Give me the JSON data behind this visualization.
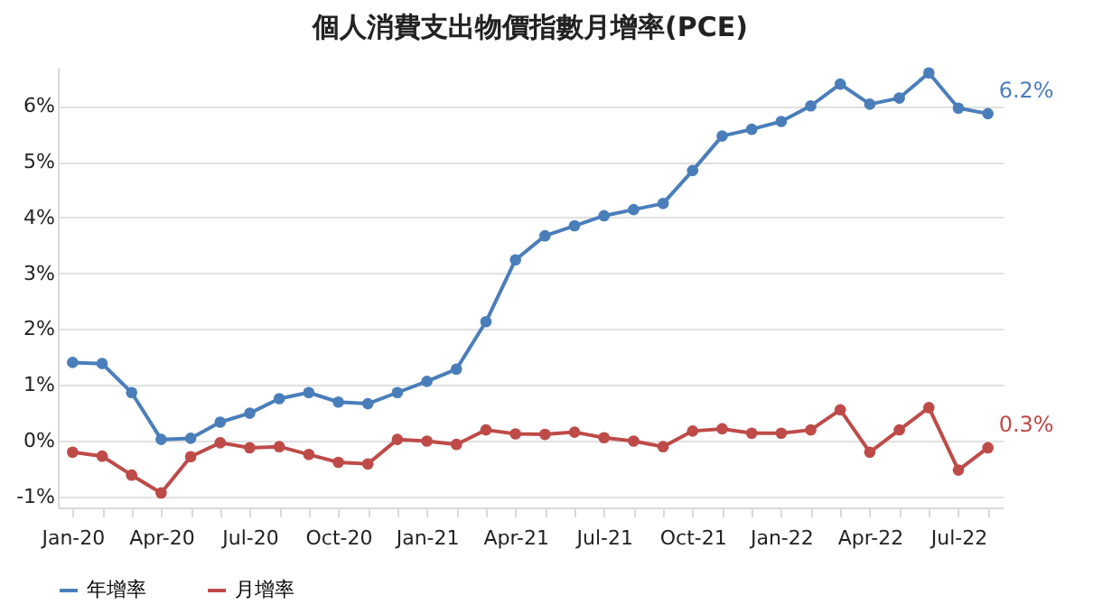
{
  "chart_data": {
    "type": "line",
    "title": "個人消費支出物價指數月增率(PCE)",
    "categories": [
      "Jan-20",
      null,
      null,
      "Apr-20",
      null,
      null,
      "Jul-20",
      null,
      null,
      "Oct-20",
      null,
      null,
      "Jan-21",
      null,
      null,
      "Apr-21",
      null,
      null,
      "Jul-21",
      null,
      null,
      "Oct-21",
      null,
      null,
      "Jan-22",
      null,
      null,
      "Apr-22",
      null,
      null,
      "Jul-22",
      null
    ],
    "series": [
      {
        "name": "年增率",
        "color": "#4a7ebb",
        "values": [
          1.4,
          1.38,
          0.86,
          0.02,
          0.04,
          0.33,
          0.49,
          0.75,
          0.86,
          0.69,
          0.66,
          0.86,
          1.06,
          1.28,
          2.13,
          3.24,
          3.67,
          3.85,
          4.03,
          4.14,
          4.25,
          4.84,
          5.46,
          5.58,
          5.72,
          6.0,
          6.39,
          6.03,
          6.14,
          6.59,
          5.96,
          5.86
        ]
      },
      {
        "name": "月增率",
        "color": "#be4b48",
        "values": [
          -0.21,
          -0.28,
          -0.62,
          -0.94,
          -0.29,
          -0.04,
          -0.13,
          -0.11,
          -0.25,
          -0.39,
          -0.42,
          0.02,
          -0.01,
          -0.07,
          0.19,
          0.12,
          0.11,
          0.15,
          0.05,
          -0.01,
          -0.11,
          0.17,
          0.21,
          0.13,
          0.13,
          0.19,
          0.55,
          -0.21,
          0.19,
          0.59,
          -0.53,
          -0.13
        ]
      }
    ],
    "annotations": [
      "6.2%",
      "0.3%"
    ],
    "ylim": [
      -1.2,
      6.7
    ],
    "yticks": [
      {
        "value": -1,
        "label": "-1%"
      },
      {
        "value": 0,
        "label": "0%"
      },
      {
        "value": 1,
        "label": "1%"
      },
      {
        "value": 2,
        "label": "2%"
      },
      {
        "value": 3,
        "label": "3%"
      },
      {
        "value": 4,
        "label": "4%"
      },
      {
        "value": 5,
        "label": "5%"
      },
      {
        "value": 6,
        "label": "6%"
      }
    ],
    "grid": "y",
    "legend": "bottom",
    "marker": "circle",
    "line_style": "solid"
  }
}
